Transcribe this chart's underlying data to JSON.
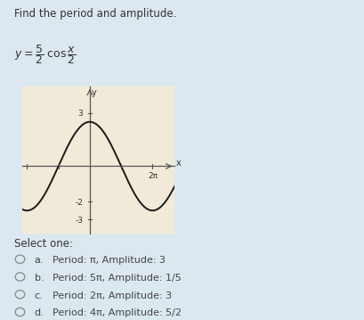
{
  "title": "Find the period and amplitude.",
  "background_color": "#dce8ef",
  "plot_bg_color": "#f2ead8",
  "amplitude": 2.5,
  "b": 0.5,
  "x_min": -6.8,
  "x_max": 8.5,
  "y_min": -3.8,
  "y_max": 4.5,
  "yticks": [
    -3,
    -2,
    3
  ],
  "xtick_label": "2π",
  "xtick_val": 6.283185307179586,
  "curve_color": "#1a1a1a",
  "axis_color": "#555555",
  "options": [
    {
      "letter": "a.",
      "text": "Period: π, Amplitude: 3"
    },
    {
      "letter": "b.",
      "text": "Period: 5π, Amplitude: 1/5"
    },
    {
      "letter": "c.",
      "text": "Period: 2π, Amplitude: 3"
    },
    {
      "letter": "d.",
      "text": "Period: 4π, Amplitude: 5/2"
    }
  ],
  "select_one_text": "Select one:"
}
